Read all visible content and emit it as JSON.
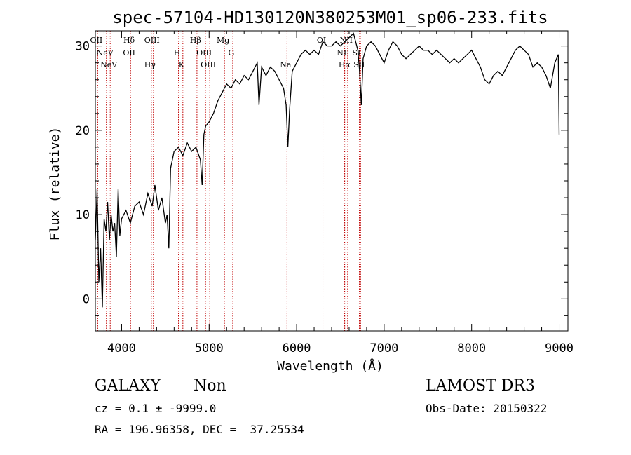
{
  "chart_data": {
    "type": "line",
    "title": "spec-57104-HD130120N380253M01_sp06-233.fits",
    "xlabel": "Wavelength (Å)",
    "ylabel": "Flux (relative)",
    "xlim": [
      3700,
      9100
    ],
    "ylim": [
      -3.8,
      31.8
    ],
    "xticks": [
      4000,
      5000,
      6000,
      7000,
      8000,
      9000
    ],
    "yticks": [
      0,
      10,
      20,
      30
    ],
    "grid": false,
    "series": [
      {
        "x": [
          3700,
          3720,
          3740,
          3760,
          3780,
          3800,
          3820,
          3840,
          3860,
          3880,
          3900,
          3920,
          3940,
          3960,
          3980,
          4000,
          4050,
          4100,
          4150,
          4200,
          4250,
          4300,
          4350,
          4380,
          4420,
          4460,
          4500,
          4520,
          4540,
          4560,
          4600,
          4650,
          4700,
          4750,
          4800,
          4850,
          4900,
          4920,
          4940,
          4960,
          5000,
          5050,
          5100,
          5150,
          5200,
          5250,
          5300,
          5350,
          5400,
          5450,
          5500,
          5550,
          5570,
          5600,
          5650,
          5700,
          5750,
          5800,
          5850,
          5880,
          5900,
          5920,
          5950,
          6000,
          6050,
          6100,
          6150,
          6200,
          6250,
          6300,
          6350,
          6400,
          6450,
          6500,
          6550,
          6600,
          6650,
          6700,
          6720,
          6740,
          6760,
          6800,
          6850,
          6900,
          6950,
          7000,
          7050,
          7100,
          7150,
          7200,
          7250,
          7300,
          7350,
          7400,
          7450,
          7500,
          7550,
          7600,
          7650,
          7700,
          7750,
          7800,
          7850,
          7900,
          7950,
          8000,
          8050,
          8100,
          8150,
          8200,
          8250,
          8300,
          8350,
          8400,
          8450,
          8500,
          8550,
          8600,
          8650,
          8700,
          8750,
          8800,
          8850,
          8900,
          8950,
          8990,
          9000
        ],
        "y": [
          7.0,
          13.0,
          2.0,
          6.0,
          -1.0,
          9.5,
          8.0,
          11.5,
          7.0,
          10.0,
          8.0,
          9.0,
          5.0,
          13.0,
          7.5,
          9.5,
          10.5,
          9.0,
          11.0,
          11.5,
          10.0,
          12.5,
          11.0,
          13.5,
          10.5,
          12.0,
          9.0,
          10.0,
          6.0,
          15.5,
          17.5,
          18.0,
          17.0,
          18.5,
          17.5,
          18.0,
          16.5,
          13.5,
          19.5,
          20.5,
          21.0,
          22.0,
          23.5,
          24.5,
          25.5,
          25.0,
          26.0,
          25.5,
          26.5,
          26.0,
          27.0,
          28.0,
          23.0,
          27.5,
          26.5,
          27.5,
          27.0,
          26.0,
          25.0,
          23.0,
          18.0,
          22.5,
          27.0,
          28.0,
          29.0,
          29.5,
          29.0,
          29.5,
          29.0,
          30.5,
          30.0,
          30.0,
          30.5,
          30.0,
          30.5,
          31.0,
          31.5,
          29.5,
          27.0,
          23.0,
          28.5,
          30.0,
          30.5,
          30.0,
          29.0,
          28.0,
          29.5,
          30.5,
          30.0,
          29.0,
          28.5,
          29.0,
          29.5,
          30.0,
          29.5,
          29.5,
          29.0,
          29.5,
          29.0,
          28.5,
          28.0,
          28.5,
          28.0,
          28.5,
          29.0,
          29.5,
          28.5,
          27.5,
          26.0,
          25.5,
          26.5,
          27.0,
          26.5,
          27.5,
          28.5,
          29.5,
          30.0,
          29.5,
          29.0,
          27.5,
          28.0,
          27.5,
          26.5,
          25.0,
          28.0,
          29.0,
          19.5
        ]
      }
    ],
    "lines": [
      {
        "x": 3727,
        "labels": [
          "OII"
        ]
      },
      {
        "x": 3826,
        "labels": [
          "NeV"
        ]
      },
      {
        "x": 3870,
        "labels": [
          "NeV"
        ]
      },
      {
        "x": 4101,
        "labels": [
          "Hδ"
        ]
      },
      {
        "x": 4102,
        "labels": [
          "OII"
        ]
      },
      {
        "x": 4340,
        "labels": [
          "Hγ"
        ]
      },
      {
        "x": 4363,
        "labels": [
          "OIII"
        ]
      },
      {
        "x": 4650,
        "labels": [
          "H"
        ]
      },
      {
        "x": 4700,
        "labels": [
          "K"
        ]
      },
      {
        "x": 4861,
        "labels": [
          "Hβ"
        ]
      },
      {
        "x": 4959,
        "labels": [
          "OIII"
        ]
      },
      {
        "x": 5007,
        "labels": [
          "OIII"
        ]
      },
      {
        "x": 5175,
        "labels": [
          "Mg"
        ]
      },
      {
        "x": 5270,
        "labels": [
          "G"
        ]
      },
      {
        "x": 5890,
        "labels": [
          "Na"
        ]
      },
      {
        "x": 6300,
        "labels": [
          "OI"
        ]
      },
      {
        "x": 6548,
        "labels": [
          "NII"
        ]
      },
      {
        "x": 6563,
        "labels": [
          "Hα"
        ]
      },
      {
        "x": 6583,
        "labels": [
          "NII"
        ]
      },
      {
        "x": 6717,
        "labels": [
          "SII"
        ]
      },
      {
        "x": 6731,
        "labels": [
          "SII"
        ]
      }
    ]
  },
  "info": {
    "classification": "GALAXY",
    "subclass": "Non",
    "survey": "LAMOST DR3",
    "cz": "cz = 0.1 ± -9999.0",
    "obsdate": "Obs-Date: 20150322",
    "radec": "RA = 196.96358, DEC =  37.25534"
  }
}
